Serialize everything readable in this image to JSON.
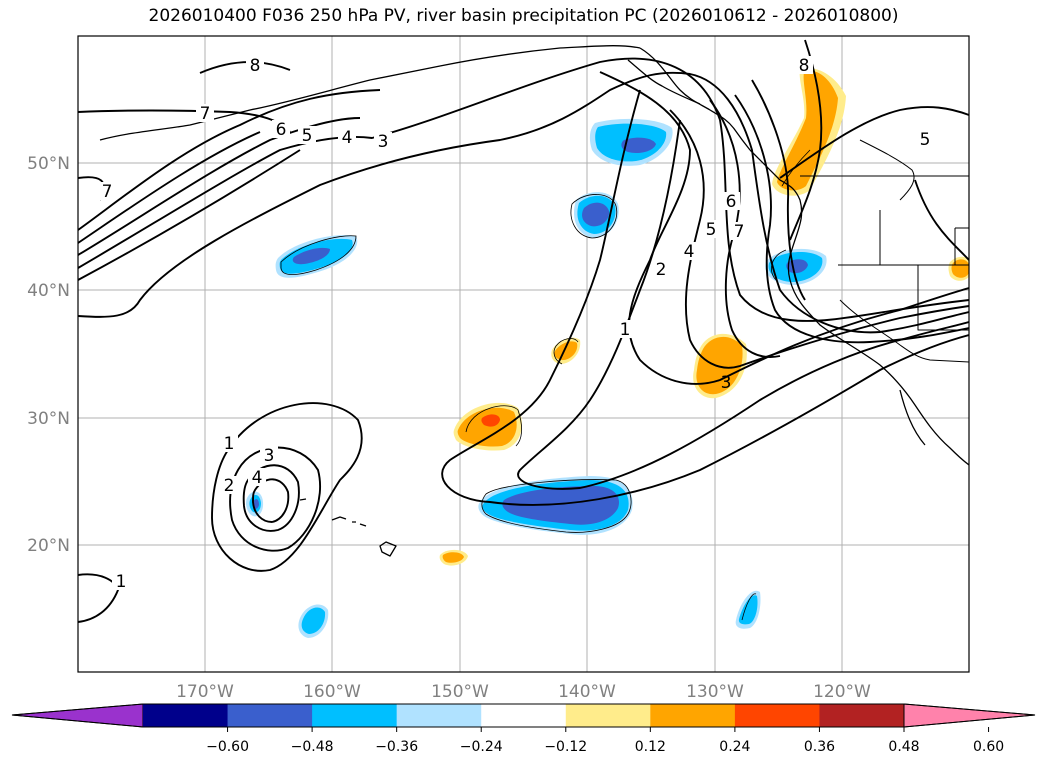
{
  "title": "2026010400 F036 250 hPa PV, river basin precipitation PC (2026010612 - 2026010800)",
  "axes": {
    "lon_labels": [
      "170°W",
      "160°W",
      "150°W",
      "140°W",
      "130°W",
      "120°W"
    ],
    "lat_labels": [
      "50°N",
      "40°N",
      "30°N",
      "20°N"
    ],
    "label_color": "#808080"
  },
  "colorbar": {
    "ticks": [
      "−0.60",
      "−0.48",
      "−0.36",
      "−0.24",
      "−0.12",
      "0.12",
      "0.24",
      "0.36",
      "0.48",
      "0.60"
    ],
    "under_color": "#9a32cd",
    "over_color": "#ff82ab",
    "colors": [
      "#00008b",
      "#3a5fcd",
      "#00bfff",
      "#b0e2ff",
      "#ffffff",
      "#ffec8b",
      "#ffa500",
      "#ff4500",
      "#b22222"
    ]
  },
  "contour_labels": [
    "8",
    "7",
    "6",
    "5",
    "4",
    "3",
    "1",
    "2",
    "3",
    "4",
    "1",
    "2",
    "4",
    "5",
    "6",
    "7",
    "3",
    "8",
    "5",
    "7",
    "1"
  ]
}
